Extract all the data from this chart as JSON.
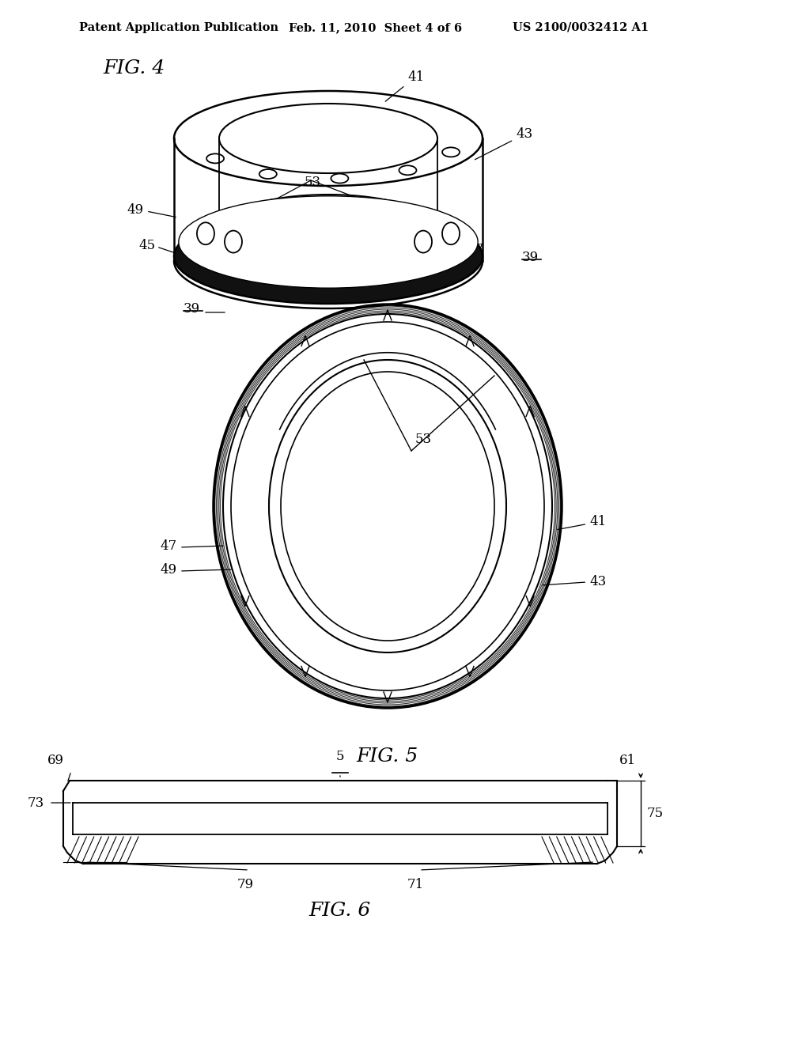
{
  "header_left": "Patent Application Publication",
  "header_mid": "Feb. 11, 2010  Sheet 4 of 6",
  "header_right": "US 2100/0032412 A1",
  "bg_color": "#ffffff",
  "line_color": "#000000"
}
